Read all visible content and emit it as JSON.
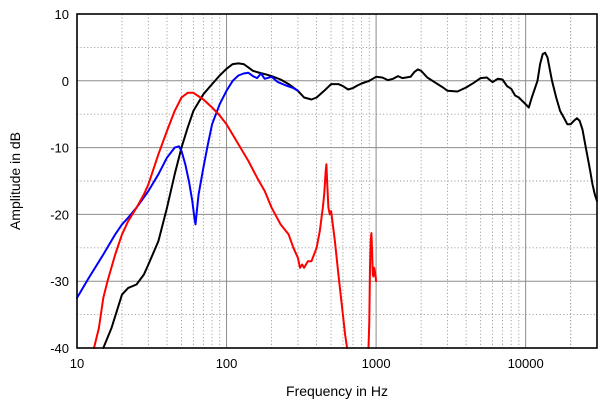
{
  "chart_data": {
    "type": "line",
    "xlabel": "Frequency in Hz",
    "ylabel": "Amplitude in dB",
    "xscale": "log",
    "xlim": [
      10,
      30000
    ],
    "ylim": [
      -40,
      10
    ],
    "x_tick_labels": [
      "10",
      "100",
      "1000",
      "10000"
    ],
    "x_ticks": [
      10,
      100,
      1000,
      10000
    ],
    "y_ticks": [
      10,
      0,
      -10,
      -20,
      -30,
      -40
    ],
    "y_tick_labels": [
      "10",
      "0",
      "-10",
      "-20",
      "-30",
      "-40"
    ],
    "grid": true,
    "colors": {
      "black": "#000000",
      "blue": "#0000ff",
      "red": "#ff0000"
    },
    "series": [
      {
        "color": "#000000",
        "points": [
          [
            15,
            -40
          ],
          [
            17,
            -37
          ],
          [
            20,
            -32
          ],
          [
            22,
            -31
          ],
          [
            25,
            -30.5
          ],
          [
            28,
            -29
          ],
          [
            30,
            -27.5
          ],
          [
            35,
            -24
          ],
          [
            40,
            -19
          ],
          [
            45,
            -14
          ],
          [
            50,
            -10
          ],
          [
            55,
            -7
          ],
          [
            60,
            -4.5
          ],
          [
            70,
            -2
          ],
          [
            80,
            -0.5
          ],
          [
            90,
            0.8
          ],
          [
            100,
            1.8
          ],
          [
            110,
            2.5
          ],
          [
            120,
            2.6
          ],
          [
            130,
            2.5
          ],
          [
            140,
            2
          ],
          [
            150,
            1.5
          ],
          [
            160,
            1.3
          ],
          [
            180,
            1
          ],
          [
            200,
            0.7
          ],
          [
            230,
            0.2
          ],
          [
            260,
            -0.5
          ],
          [
            300,
            -1.5
          ],
          [
            330,
            -2.5
          ],
          [
            370,
            -2.8
          ],
          [
            400,
            -2.5
          ],
          [
            450,
            -1.5
          ],
          [
            500,
            -0.5
          ],
          [
            560,
            -0.5
          ],
          [
            600,
            -0.8
          ],
          [
            650,
            -1.3
          ],
          [
            700,
            -1.1
          ],
          [
            750,
            -0.7
          ],
          [
            800,
            -0.4
          ],
          [
            900,
            0
          ],
          [
            1000,
            0.6
          ],
          [
            1100,
            0.5
          ],
          [
            1200,
            0.1
          ],
          [
            1300,
            0.3
          ],
          [
            1400,
            0.7
          ],
          [
            1500,
            0.4
          ],
          [
            1700,
            0.6
          ],
          [
            1800,
            1.3
          ],
          [
            1900,
            1.7
          ],
          [
            2000,
            1.5
          ],
          [
            2200,
            0.5
          ],
          [
            2500,
            -0.3
          ],
          [
            2800,
            -1
          ],
          [
            3000,
            -1.5
          ],
          [
            3500,
            -1.6
          ],
          [
            4000,
            -1
          ],
          [
            4500,
            -0.3
          ],
          [
            5000,
            0.4
          ],
          [
            5500,
            0.5
          ],
          [
            6000,
            -0.2
          ],
          [
            6500,
            0.3
          ],
          [
            7000,
            0.2
          ],
          [
            7500,
            -0.8
          ],
          [
            8000,
            -1.2
          ],
          [
            8500,
            -2.2
          ],
          [
            9000,
            -2.5
          ],
          [
            10000,
            -3.5
          ],
          [
            10500,
            -4
          ],
          [
            11000,
            -2.5
          ],
          [
            12000,
            0
          ],
          [
            12500,
            2.5
          ],
          [
            13000,
            4
          ],
          [
            13500,
            4.2
          ],
          [
            14000,
            3.5
          ],
          [
            15000,
            0
          ],
          [
            16000,
            -2.5
          ],
          [
            17000,
            -4.5
          ],
          [
            18000,
            -5.5
          ],
          [
            19000,
            -6.5
          ],
          [
            20000,
            -6.5
          ],
          [
            21000,
            -6
          ],
          [
            22000,
            -5.6
          ],
          [
            23000,
            -6
          ],
          [
            24000,
            -7.3
          ],
          [
            25000,
            -9.5
          ],
          [
            26000,
            -11.5
          ],
          [
            27000,
            -13.5
          ],
          [
            28000,
            -15.5
          ],
          [
            29000,
            -17
          ],
          [
            30000,
            -18
          ]
        ]
      },
      {
        "color": "#0000ff",
        "points": [
          [
            10,
            -32.5
          ],
          [
            12,
            -29.5
          ],
          [
            15,
            -26
          ],
          [
            18,
            -23
          ],
          [
            20,
            -21.5
          ],
          [
            22,
            -20.5
          ],
          [
            25,
            -19
          ],
          [
            30,
            -16.5
          ],
          [
            35,
            -14
          ],
          [
            40,
            -11.5
          ],
          [
            45,
            -10
          ],
          [
            48,
            -9.8
          ],
          [
            50,
            -10.5
          ],
          [
            53,
            -12.5
          ],
          [
            56,
            -15
          ],
          [
            59,
            -18
          ],
          [
            61,
            -20.5
          ],
          [
            62,
            -21.5
          ],
          [
            63,
            -20
          ],
          [
            65,
            -17
          ],
          [
            70,
            -13
          ],
          [
            75,
            -9.5
          ],
          [
            80,
            -6.5
          ],
          [
            90,
            -3.5
          ],
          [
            100,
            -1.5
          ],
          [
            110,
            0
          ],
          [
            120,
            0.8
          ],
          [
            130,
            1.1
          ],
          [
            140,
            1.2
          ],
          [
            150,
            0.7
          ],
          [
            160,
            0.4
          ],
          [
            170,
            1.1
          ],
          [
            180,
            0.3
          ],
          [
            200,
            0.6
          ],
          [
            220,
            -0.2
          ],
          [
            250,
            -0.7
          ],
          [
            280,
            -1.1
          ],
          [
            300,
            -1.5
          ]
        ]
      },
      {
        "color": "#ff0000",
        "points": [
          [
            13,
            -40
          ],
          [
            14,
            -37
          ],
          [
            15,
            -32.5
          ],
          [
            16,
            -30
          ],
          [
            18,
            -26
          ],
          [
            20,
            -23
          ],
          [
            22,
            -21
          ],
          [
            25,
            -19
          ],
          [
            28,
            -17
          ],
          [
            30,
            -15.5
          ],
          [
            35,
            -11
          ],
          [
            40,
            -7.5
          ],
          [
            45,
            -4.5
          ],
          [
            50,
            -2.5
          ],
          [
            55,
            -1.8
          ],
          [
            60,
            -1.8
          ],
          [
            70,
            -2.8
          ],
          [
            80,
            -4
          ],
          [
            90,
            -5.2
          ],
          [
            100,
            -6.5
          ],
          [
            120,
            -9.5
          ],
          [
            140,
            -12
          ],
          [
            160,
            -14.5
          ],
          [
            180,
            -16.5
          ],
          [
            200,
            -19
          ],
          [
            230,
            -21.5
          ],
          [
            260,
            -23
          ],
          [
            280,
            -25
          ],
          [
            300,
            -26.5
          ],
          [
            310,
            -28
          ],
          [
            320,
            -27.5
          ],
          [
            330,
            -28
          ],
          [
            350,
            -27
          ],
          [
            370,
            -27
          ],
          [
            400,
            -25
          ],
          [
            420,
            -22.5
          ],
          [
            440,
            -19
          ],
          [
            450,
            -17
          ],
          [
            460,
            -13.5
          ],
          [
            465,
            -12.5
          ],
          [
            470,
            -15
          ],
          [
            480,
            -19
          ],
          [
            490,
            -20
          ],
          [
            500,
            -19.5
          ],
          [
            530,
            -24
          ],
          [
            560,
            -29
          ],
          [
            600,
            -35
          ],
          [
            620,
            -38
          ],
          [
            640,
            -40
          ]
        ]
      },
      {
        "color": "#ff0000",
        "points": [
          [
            890,
            -40
          ],
          [
            900,
            -36
          ],
          [
            910,
            -28
          ],
          [
            920,
            -24
          ],
          [
            930,
            -22.8
          ],
          [
            940,
            -25.5
          ],
          [
            950,
            -29
          ],
          [
            960,
            -29.3
          ],
          [
            970,
            -28
          ],
          [
            990,
            -29
          ],
          [
            1000,
            -30
          ]
        ]
      }
    ]
  }
}
